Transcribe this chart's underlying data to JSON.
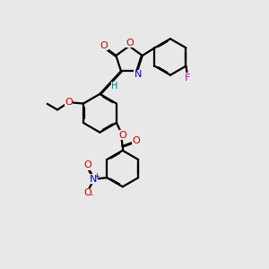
{
  "bg_color": "#e8e8e8",
  "bond_color": "#000000",
  "atom_colors": {
    "O": "#cc0000",
    "N": "#0000cc",
    "F": "#cc00cc",
    "H": "#008080",
    "C": "#000000"
  },
  "figsize": [
    3.0,
    3.0
  ],
  "dpi": 100
}
